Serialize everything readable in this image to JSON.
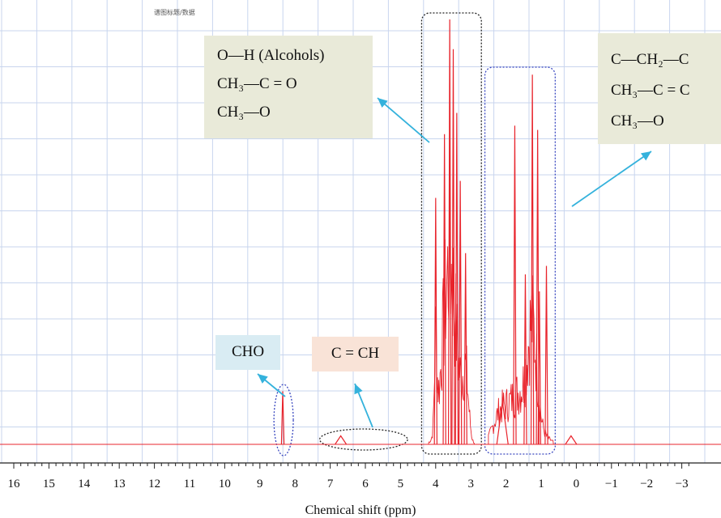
{
  "header_text": "谱图标题/数据",
  "chart_data": {
    "type": "line",
    "xlabel": "Chemical shift (ppm)",
    "xlim": [
      16,
      -3.3
    ],
    "x_reversed": true,
    "x_ticks": [
      16,
      15,
      14,
      13,
      12,
      11,
      10,
      9,
      8,
      7,
      6,
      5,
      4,
      3,
      2,
      1,
      0,
      -1,
      -2,
      -3
    ],
    "x_tick_labels": [
      "16",
      "15",
      "14",
      "13",
      "12",
      "11",
      "10",
      "9",
      "8",
      "7",
      "6",
      "5",
      "4",
      "3",
      "2",
      "1",
      "0",
      "−1",
      "−2",
      "−3"
    ],
    "ylim": [
      0,
      100
    ],
    "grid": true,
    "y_axis_labels_shown": false,
    "colors": {
      "spectrum": "#e8242c",
      "arrow": "#34b2dc",
      "baseline": "#e8242c",
      "grid": "#c8d5ee"
    },
    "peaks": [
      {
        "x": 8.35,
        "y": 12.5
      },
      {
        "x": 6.7,
        "y": 2.0
      },
      {
        "x": 3.6,
        "y": 100
      },
      {
        "x": 3.5,
        "y": 93
      },
      {
        "x": 3.4,
        "y": 78
      },
      {
        "x": 3.75,
        "y": 73
      },
      {
        "x": 3.3,
        "y": 62
      },
      {
        "x": 4.0,
        "y": 58
      },
      {
        "x": 3.15,
        "y": 45
      },
      {
        "x": 1.25,
        "y": 87
      },
      {
        "x": 1.75,
        "y": 75
      },
      {
        "x": 1.1,
        "y": 74
      },
      {
        "x": 0.85,
        "y": 42
      },
      {
        "x": 1.45,
        "y": 40
      },
      {
        "x": 1.05,
        "y": 36
      },
      {
        "x": 2.1,
        "y": 10
      },
      {
        "x": 0.15,
        "y": 2
      }
    ],
    "annotations": [
      {
        "id": "alcohols",
        "lines": [
          "O—H (Alcohols)",
          "CH₃—C = O",
          "CH₃—O"
        ],
        "box_color": "#e9ead9",
        "region_ppm": [
          4.4,
          2.7
        ],
        "region_style": "dotted-black-rect"
      },
      {
        "id": "aliphatic",
        "lines": [
          "C—CH₂—C",
          "CH₃—C = C",
          "CH₃—O"
        ],
        "box_color": "#e9ead9",
        "region_ppm": [
          2.6,
          0.6
        ],
        "region_style": "dotted-blue-rect"
      },
      {
        "id": "aldehyde",
        "lines": [
          "CHO"
        ],
        "box_color": "#d9ecf3",
        "region_ppm": [
          8.6,
          8.05
        ],
        "region_style": "dotted-blue-ellipse"
      },
      {
        "id": "olefin",
        "lines": [
          "C = CH"
        ],
        "box_color": "#f9e3d7",
        "region_ppm": [
          7.3,
          4.8
        ],
        "region_style": "dotted-black-ellipse"
      }
    ]
  }
}
